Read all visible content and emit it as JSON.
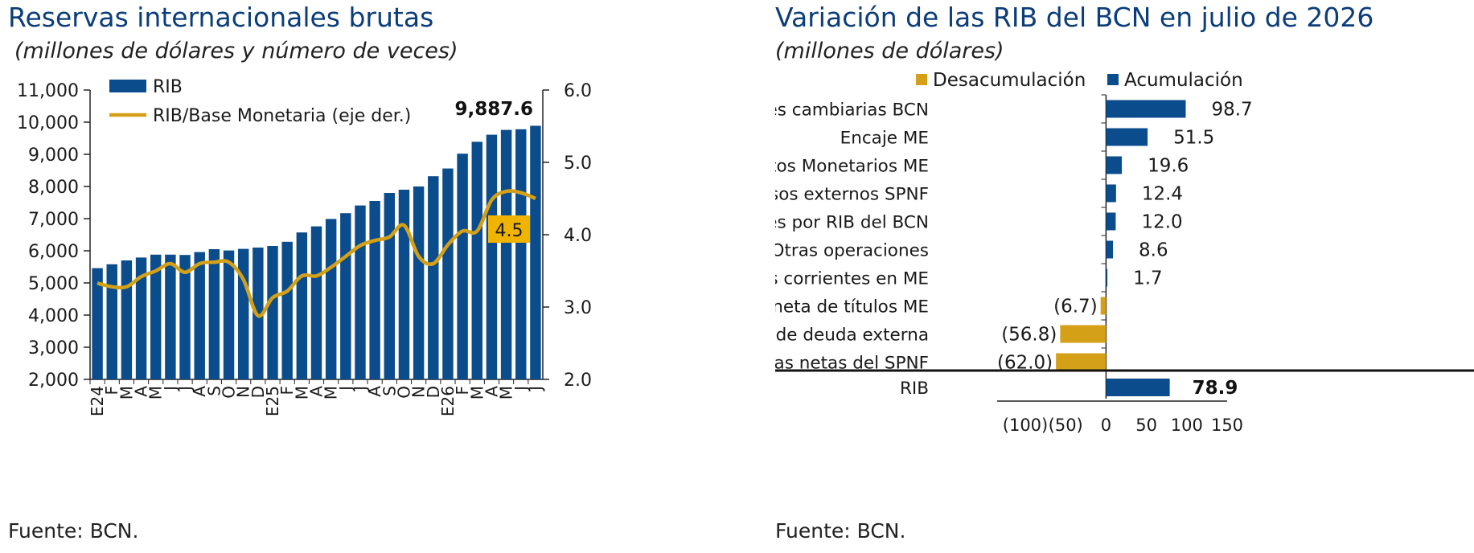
{
  "left_chart": {
    "title": "Reservas internacionales brutas",
    "subtitle": "(millones de dólares y número de veces)",
    "source": "Fuente: BCN.",
    "legend_bar": "RIB",
    "legend_line": "RIB/Base Monetaria (eje der.)",
    "callout_last_bar": "9,887.6",
    "callout_last_ratio": "4.5",
    "left_ticks": [
      "2,000",
      "3,000",
      "4,000",
      "5,000",
      "6,000",
      "7,000",
      "8,000",
      "9,000",
      "10,000",
      "11,000"
    ],
    "right_ticks": [
      "2.0",
      "3.0",
      "4.0",
      "5.0",
      "6.0"
    ],
    "colors": {
      "bar": "#0b4c8c",
      "line": "#d4a017",
      "callout_bg": "#f0b400"
    }
  },
  "right_chart": {
    "title": "Variación de las RIB del BCN en julio de 2026",
    "subtitle": "(millones de dólares)",
    "source": "Fuente: BCN.",
    "legend_neg": "Desacumulación",
    "legend_pos": "Acumulación",
    "x_ticks": [
      "(100)",
      "(50)",
      "0",
      "50",
      "100",
      "150"
    ],
    "colors": {
      "pos": "#0b4c8c",
      "neg": "#d4a017"
    }
  },
  "chart_data": [
    {
      "type": "bar",
      "title": "Reservas internacionales brutas",
      "subtitle": "(millones de dólares y número de veces)",
      "categories": [
        "E24",
        "F",
        "M",
        "A",
        "M",
        "J",
        "J",
        "A",
        "S",
        "O",
        "N",
        "D",
        "E25",
        "F",
        "M",
        "A",
        "M",
        "J",
        "J",
        "A",
        "S",
        "O",
        "N",
        "D",
        "E26",
        "F",
        "M",
        "A",
        "M",
        "J",
        "J"
      ],
      "series": [
        {
          "name": "RIB",
          "axis": "left",
          "values": [
            5460,
            5580,
            5700,
            5790,
            5880,
            5880,
            5870,
            5960,
            6050,
            6010,
            6060,
            6100,
            6150,
            6280,
            6570,
            6760,
            6990,
            7170,
            7410,
            7550,
            7800,
            7900,
            8000,
            8320,
            8560,
            9020,
            9390,
            9610,
            9760,
            9780,
            9887.6
          ]
        },
        {
          "name": "RIB/Base Monetaria (eje der.)",
          "axis": "right",
          "type": "line",
          "values": [
            3.33,
            3.28,
            3.28,
            3.42,
            3.5,
            3.6,
            3.48,
            3.6,
            3.62,
            3.62,
            3.38,
            2.88,
            3.13,
            3.22,
            3.43,
            3.43,
            3.55,
            3.7,
            3.85,
            3.92,
            3.97,
            4.13,
            3.7,
            3.6,
            3.86,
            4.05,
            4.05,
            4.48,
            4.6,
            4.58,
            4.5
          ]
        }
      ],
      "ylim_left": [
        2000,
        11000
      ],
      "ylim_right": [
        2.0,
        6.0
      ],
      "annotations": [
        "9,887.6",
        "4.5"
      ],
      "legend": "top-left"
    },
    {
      "type": "bar",
      "orientation": "horizontal",
      "title": "Variación de las RIB del BCN en julio de 2026",
      "subtitle": "(millones de dólares)",
      "categories": [
        "Operaciones cambiarias BCN",
        "Encaje ME",
        "Depósitos Monetarios ME",
        "Recursos externos SPNF",
        "Intereses por RIB del BCN",
        "Otras operaciones",
        "Cuentas corrientes en ME",
        "Colocación neta de títulos ME",
        "Servicio de deuda externa",
        "Cuentas netas del SPNF"
      ],
      "values": [
        98.7,
        51.5,
        19.6,
        12.4,
        12.0,
        8.6,
        1.7,
        -6.7,
        -56.8,
        -62.0
      ],
      "labels": [
        "98.7",
        "51.5",
        "19.6",
        "12.4",
        "12.0",
        "8.6",
        "1.7",
        "(6.7)",
        "(56.8)",
        "(62.0)"
      ],
      "total": {
        "category": "RIB",
        "value": 78.9,
        "label": "78.9"
      },
      "series": [
        {
          "name": "Desacumulación"
        },
        {
          "name": "Acumulación"
        }
      ],
      "xlim": [
        -100,
        150
      ],
      "legend": "top-right"
    }
  ]
}
